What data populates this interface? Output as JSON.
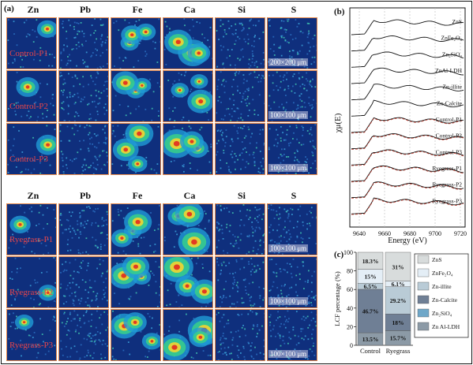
{
  "panel_a": {
    "label": "(a)",
    "top_group": {
      "elements": [
        "Zn",
        "Pb",
        "Fe",
        "Ca",
        "Si",
        "S"
      ],
      "samples": [
        "Control-P1",
        "Control-P2",
        "Control-P3"
      ],
      "scale_bars": [
        "200×200 μm",
        "100×100 μm",
        "100×100 μm"
      ]
    },
    "bottom_group": {
      "elements": [
        "Zn",
        "Pb",
        "Fe",
        "Ca",
        "Si",
        "S"
      ],
      "samples": [
        "Ryegrass-P1",
        "Ryegrass-P2",
        "Ryegrass-P3"
      ],
      "scale_bars": [
        "100×100 μm",
        "100×100 μm",
        "100×100 μm"
      ]
    }
  },
  "panel_b": {
    "label": "(b)",
    "ylabel": "χμ(E)",
    "xlabel": "Energy (eV)",
    "xticks": [
      "9640",
      "9660",
      "9680",
      "9700",
      "9720"
    ],
    "spectra": [
      "ZnS",
      "ZnFe₂O₄",
      "Zn₂SiO₄",
      "ZnAl-LDH",
      "Zn-illite",
      "Zn-Calcite",
      "Control-P1",
      "Control-P2",
      "Control-P3",
      "Ryegrass-P1",
      "Ryegrass-P2",
      "Ryegrass-P3"
    ],
    "colors": {
      "spectrum": "#111111",
      "fit": "#c0392b"
    }
  },
  "panel_c": {
    "label": "(c)",
    "chart_data": {
      "type": "bar",
      "stacked": true,
      "categories": [
        "Control",
        "Ryegrass"
      ],
      "ylabel": "LCF percentage (%)",
      "ylim": [
        0,
        100
      ],
      "yticks": [
        "0",
        "20",
        "40",
        "60",
        "80",
        "100"
      ],
      "series": [
        {
          "name": "Zn Al-LDH",
          "values": [
            13.5,
            15.7
          ],
          "color": "#8c9aa6"
        },
        {
          "name": "Zn₂SiO₄",
          "values": [
            0,
            0
          ],
          "color": "#6fa7c8"
        },
        {
          "name": "Zn-Calcite",
          "values": [
            46.7,
            18
          ],
          "color": "#6f7f95"
        },
        {
          "name": "Zn-illite",
          "values": [
            6.5,
            29.2
          ],
          "color": "#b9cbd6"
        },
        {
          "name": "ZnFe₂O₄",
          "values": [
            15,
            6.1
          ],
          "color": "#e4eef6"
        },
        {
          "name": "ZnS",
          "values": [
            18.3,
            31
          ],
          "color": "#d8dcdc"
        }
      ],
      "data_labels": [
        [
          "13.5%",
          "46.7%",
          "6.5%",
          "15%",
          "18.3%"
        ],
        [
          "15.7%",
          "18%",
          "29.2%",
          "6.1%",
          "31%"
        ]
      ],
      "legend": [
        "ZnS",
        "ZnFe₂O₄",
        "Zn-illite",
        "Zn-Calcite",
        "Zn₂SiO₄",
        "Zn Al-LDH"
      ]
    }
  }
}
